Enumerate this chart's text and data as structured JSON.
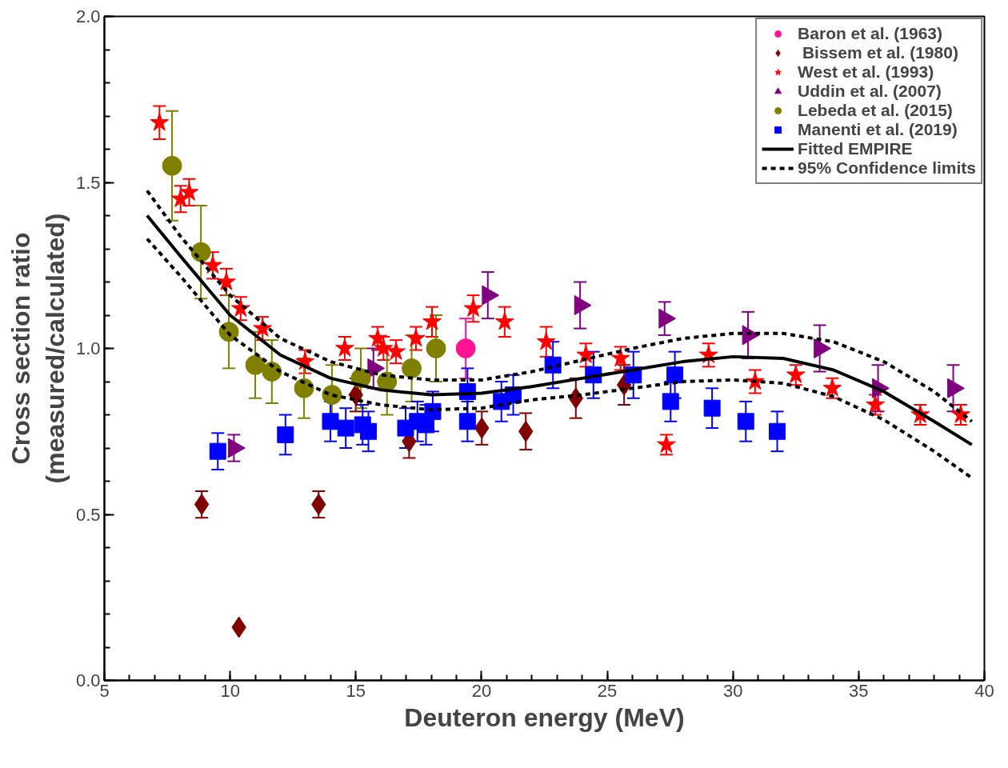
{
  "chart_data": {
    "type": "scatter",
    "xlabel": "Deuteron energy (MeV)",
    "ylabel": "Cross section ratio\n(measured/calculated)",
    "xlim": [
      5,
      40
    ],
    "ylim": [
      0,
      2
    ],
    "xticks": [
      5,
      10,
      15,
      20,
      25,
      30,
      35,
      40
    ],
    "yticks": [
      {
        "value": 0,
        "label": "0.0"
      },
      0.5,
      {
        "value": 1,
        "label": "1.0"
      },
      1.5,
      {
        "value": 2,
        "label": "2.0"
      }
    ],
    "grid": false,
    "legend": "top right",
    "series": [
      {
        "name": "Baron et al. (1963)",
        "color": "#ff1493",
        "marker": "circle",
        "x": [
          19.37
        ],
        "values": [
          1.0
        ],
        "errors": [
          0.09
        ]
      },
      {
        "name": " Bissem et al. (1980)",
        "color": "#800000",
        "marker": "diamond",
        "x": [
          8.87,
          10.35,
          13.52,
          15.0,
          17.12,
          20.01,
          21.76,
          23.75,
          25.67
        ],
        "values": [
          0.53,
          0.16,
          0.53,
          0.86,
          0.72,
          0.76,
          0.75,
          0.85,
          0.89
        ],
        "errors": [
          0.04,
          null,
          0.04,
          0.05,
          0.05,
          0.05,
          0.055,
          0.06,
          0.06
        ]
      },
      {
        "name": "West et al. (1993)",
        "color": "#ff0000",
        "marker": "star",
        "x": [
          7.19,
          8.03,
          8.37,
          9.31,
          9.85,
          10.42,
          11.29,
          12.98,
          14.56,
          15.87,
          16.1,
          16.6,
          17.39,
          18.03,
          19.67,
          20.92,
          22.57,
          24.15,
          25.53,
          27.35,
          29.03,
          30.88,
          32.5,
          33.95,
          35.66,
          37.45,
          39.06
        ],
        "values": [
          1.68,
          1.45,
          1.47,
          1.25,
          1.2,
          1.12,
          1.06,
          0.96,
          1.0,
          1.03,
          1.0,
          0.99,
          1.03,
          1.08,
          1.12,
          1.08,
          1.02,
          0.98,
          0.97,
          0.71,
          0.98,
          0.9,
          0.92,
          0.88,
          0.83,
          0.8,
          0.8
        ],
        "errors": [
          0.05,
          0.04,
          0.04,
          0.04,
          0.04,
          0.035,
          0.035,
          0.035,
          0.035,
          0.035,
          0.035,
          0.035,
          0.035,
          0.045,
          0.04,
          0.045,
          0.045,
          0.035,
          0.035,
          0.03,
          0.035,
          0.035,
          0.03,
          0.03,
          0.03,
          0.03,
          0.03
        ]
      },
      {
        "name": "Uddin et al. (2007)",
        "color": "#800080",
        "marker": "triangle",
        "x": [
          10.15,
          15.7,
          20.25,
          23.92,
          27.28,
          30.6,
          33.45,
          35.77,
          38.76
        ],
        "values": [
          0.7,
          0.94,
          1.16,
          1.13,
          1.09,
          1.04,
          1.0,
          0.88,
          0.88
        ],
        "errors": [
          0.04,
          0.06,
          0.07,
          0.07,
          0.05,
          0.07,
          0.07,
          0.07,
          0.07
        ]
      },
      {
        "name": "Lebeda et al. (2015)",
        "color": "#808000",
        "marker": "circle",
        "x": [
          7.69,
          8.84,
          9.95,
          11.0,
          11.66,
          12.94,
          14.05,
          15.2,
          16.24,
          17.22,
          18.19
        ],
        "values": [
          1.55,
          1.29,
          1.05,
          0.95,
          0.93,
          0.88,
          0.86,
          0.91,
          0.9,
          0.94,
          1.0
        ],
        "errors": [
          0.165,
          0.14,
          0.11,
          0.1,
          0.095,
          0.09,
          0.09,
          0.09,
          0.1,
          0.1,
          0.1
        ]
      },
      {
        "name": "Manenti et al. (2019)",
        "color": "#0000ff",
        "marker": "square",
        "x": [
          9.51,
          12.2,
          13.99,
          14.6,
          15.27,
          15.5,
          16.98,
          17.45,
          17.79,
          18.06,
          19.44,
          19.44,
          20.79,
          21.26,
          22.84,
          24.45,
          26.04,
          27.69,
          27.52,
          29.17,
          30.51,
          31.76
        ],
        "values": [
          0.69,
          0.74,
          0.78,
          0.76,
          0.77,
          0.75,
          0.76,
          0.78,
          0.77,
          0.81,
          0.87,
          0.78,
          0.84,
          0.86,
          0.95,
          0.92,
          0.92,
          0.92,
          0.84,
          0.82,
          0.78,
          0.75
        ],
        "errors": [
          0.055,
          0.06,
          0.06,
          0.06,
          0.06,
          0.06,
          0.06,
          0.06,
          0.06,
          0.06,
          0.07,
          0.06,
          0.06,
          0.06,
          0.07,
          0.07,
          0.07,
          0.07,
          0.06,
          0.06,
          0.06,
          0.06
        ]
      },
      {
        "name": "Fitted EMPIRE",
        "type": "line",
        "line_style": "solid",
        "color": "#000000",
        "x": [
          6.7,
          8,
          10,
          12,
          14,
          16,
          18,
          20,
          22,
          24,
          26,
          28,
          30,
          32,
          34,
          36,
          38,
          39.5
        ],
        "values": [
          1.4,
          1.28,
          1.1,
          0.98,
          0.91,
          0.875,
          0.86,
          0.865,
          0.885,
          0.91,
          0.935,
          0.96,
          0.975,
          0.97,
          0.935,
          0.87,
          0.78,
          0.71
        ]
      },
      {
        "name": "95% Confidence limits",
        "type": "line",
        "line_style": "dashed",
        "color": "#000000",
        "x": [
          6.7,
          8,
          10,
          12,
          14,
          16,
          18,
          20,
          22,
          24,
          26,
          28,
          30,
          32,
          34,
          36,
          38,
          39.5
        ],
        "values": [
          1.475,
          1.34,
          1.16,
          1.03,
          0.96,
          0.92,
          0.905,
          0.905,
          0.93,
          0.965,
          1.0,
          1.03,
          1.045,
          1.045,
          1.02,
          0.96,
          0.87,
          0.78
        ]
      },
      {
        "type": "line",
        "line_style": "dashed",
        "color": "#000000",
        "x": [
          6.7,
          8,
          10,
          12,
          14,
          16,
          18,
          20,
          22,
          24,
          26,
          28,
          30,
          32,
          34,
          36,
          38,
          39.5
        ],
        "values": [
          1.33,
          1.22,
          1.04,
          0.93,
          0.86,
          0.83,
          0.815,
          0.82,
          0.845,
          0.86,
          0.88,
          0.9,
          0.905,
          0.895,
          0.855,
          0.785,
          0.69,
          0.61
        ]
      }
    ]
  }
}
